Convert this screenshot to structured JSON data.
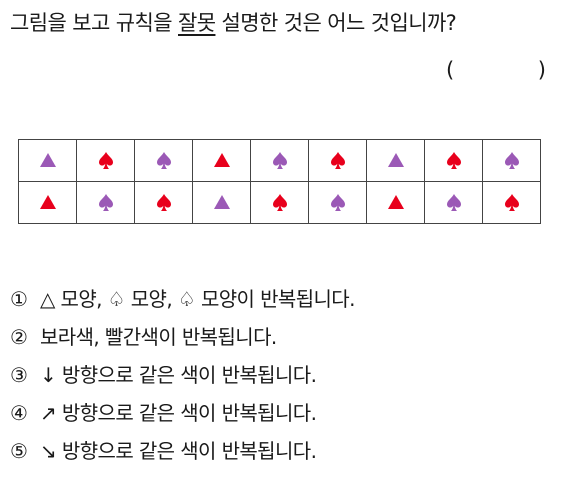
{
  "question": {
    "before": "그림을 보고 규칙을 ",
    "underlined": "잘못",
    "after": " 설명한 것은 어느 것입니까?"
  },
  "answer": {
    "left_paren": "(",
    "right_paren": ")"
  },
  "colors": {
    "purple": "#9b59b6",
    "red": "#e8001c",
    "border": "#444444"
  },
  "grid": {
    "rows": [
      [
        {
          "shape": "triangle",
          "color": "purple"
        },
        {
          "shape": "spade",
          "color": "red"
        },
        {
          "shape": "spade",
          "color": "purple"
        },
        {
          "shape": "triangle",
          "color": "red"
        },
        {
          "shape": "spade",
          "color": "purple"
        },
        {
          "shape": "spade",
          "color": "red"
        },
        {
          "shape": "triangle",
          "color": "purple"
        },
        {
          "shape": "spade",
          "color": "red"
        },
        {
          "shape": "spade",
          "color": "purple"
        }
      ],
      [
        {
          "shape": "triangle",
          "color": "red"
        },
        {
          "shape": "spade",
          "color": "purple"
        },
        {
          "shape": "spade",
          "color": "red"
        },
        {
          "shape": "triangle",
          "color": "purple"
        },
        {
          "shape": "spade",
          "color": "red"
        },
        {
          "shape": "spade",
          "color": "purple"
        },
        {
          "shape": "triangle",
          "color": "red"
        },
        {
          "shape": "spade",
          "color": "purple"
        },
        {
          "shape": "spade",
          "color": "red"
        }
      ]
    ]
  },
  "options": [
    {
      "num": "①",
      "text": "△ 모양, ♤ 모양, ♤ 모양이 반복됩니다."
    },
    {
      "num": "②",
      "text": "보라색, 빨간색이 반복됩니다."
    },
    {
      "num": "③",
      "text": "↓ 방향으로 같은 색이 반복됩니다."
    },
    {
      "num": "④",
      "text": "↗ 방향으로 같은 색이 반복됩니다."
    },
    {
      "num": "⑤",
      "text": "↘ 방향으로 같은 색이 반복됩니다."
    }
  ]
}
